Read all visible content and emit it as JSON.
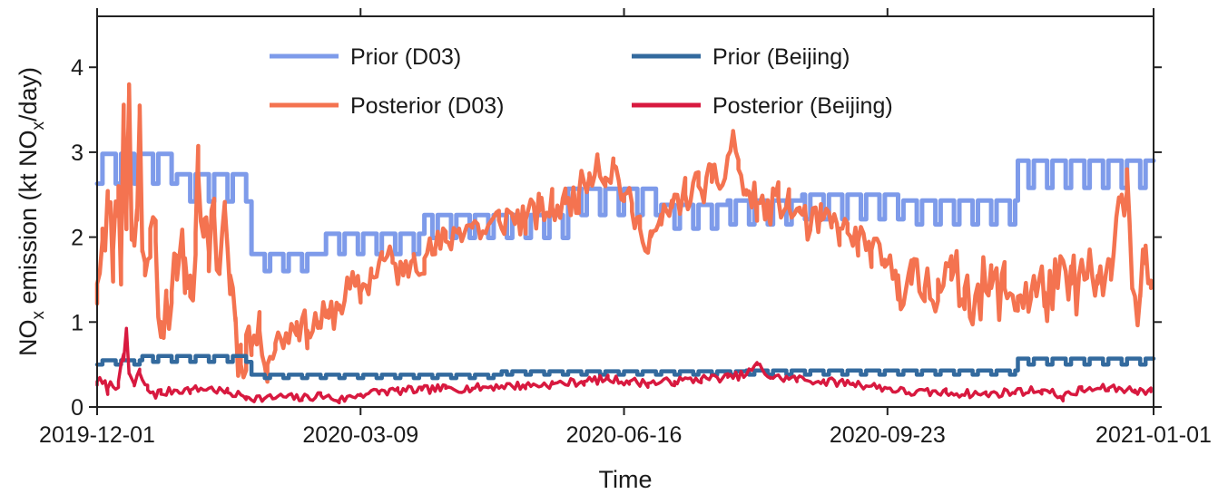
{
  "chart_data": {
    "type": "line",
    "xlabel": "Time",
    "ylabel_parts": {
      "pre": "NO",
      "sub": "x",
      "mid": " emission  (kt NO",
      "sub2": "x",
      "post": "/day)"
    },
    "xlim": [
      "2019-12-01",
      "2021-01-01"
    ],
    "ylim": [
      0,
      4.6
    ],
    "xticks": [
      "2019-12-01",
      "2020-03-09",
      "2020-06-16",
      "2020-09-23",
      "2021-01-01"
    ],
    "yticks": [
      0,
      1,
      2,
      3,
      4
    ],
    "grid": false,
    "legend_position": "top-center",
    "series": [
      {
        "name": "Prior (D03)",
        "color": "#7e9bea",
        "pattern": "weekly",
        "segments": [
          {
            "start": "2019-12-01",
            "end": "2019-12-31",
            "high": 2.98,
            "low": 2.63
          },
          {
            "start": "2019-12-31",
            "end": "2020-01-28",
            "high": 2.74,
            "low": 2.42
          },
          {
            "start": "2020-01-28",
            "end": "2020-02-23",
            "high": 1.8,
            "low": 1.6
          },
          {
            "start": "2020-02-23",
            "end": "2020-04-02",
            "high": 2.04,
            "low": 1.8
          },
          {
            "start": "2020-04-02",
            "end": "2020-05-26",
            "high": 2.26,
            "low": 1.99
          },
          {
            "start": "2020-05-26",
            "end": "2020-06-30",
            "high": 2.57,
            "low": 2.26
          },
          {
            "start": "2020-06-30",
            "end": "2020-07-25",
            "high": 2.38,
            "low": 2.1
          },
          {
            "start": "2020-07-25",
            "end": "2020-08-22",
            "high": 2.43,
            "low": 2.15
          },
          {
            "start": "2020-08-22",
            "end": "2020-09-29",
            "high": 2.5,
            "low": 2.21
          },
          {
            "start": "2020-09-29",
            "end": "2020-11-11",
            "high": 2.43,
            "low": 2.15
          },
          {
            "start": "2020-11-11",
            "end": "2021-01-01",
            "high": 2.9,
            "low": 2.58
          }
        ]
      },
      {
        "name": "Prior (Beijing)",
        "color": "#336a9e",
        "pattern": "weekly",
        "segments": [
          {
            "start": "2019-12-01",
            "end": "2019-12-18",
            "high": 0.55,
            "low": 0.5
          },
          {
            "start": "2019-12-18",
            "end": "2020-01-28",
            "high": 0.6,
            "low": 0.53
          },
          {
            "start": "2020-01-28",
            "end": "2020-03-09",
            "high": 0.38,
            "low": 0.34
          },
          {
            "start": "2020-03-09",
            "end": "2020-05-01",
            "high": 0.38,
            "low": 0.34
          },
          {
            "start": "2020-05-01",
            "end": "2020-08-01",
            "high": 0.42,
            "low": 0.38
          },
          {
            "start": "2020-08-01",
            "end": "2020-11-11",
            "high": 0.43,
            "low": 0.38
          },
          {
            "start": "2020-11-11",
            "end": "2021-01-01",
            "high": 0.57,
            "low": 0.5
          }
        ]
      },
      {
        "name": "Posterior (D03)",
        "color": "#f47350",
        "noise_seed": 11,
        "points": [
          [
            "2019-12-01",
            1.45
          ],
          [
            "2019-12-03",
            2.1
          ],
          [
            "2019-12-05",
            2.35
          ],
          [
            "2019-12-07",
            1.85
          ],
          [
            "2019-12-09",
            2.6
          ],
          [
            "2019-12-10",
            1.7
          ],
          [
            "2019-12-11",
            3.3
          ],
          [
            "2019-12-12",
            2.3
          ],
          [
            "2019-12-13",
            3.8
          ],
          [
            "2019-12-14",
            2.1
          ],
          [
            "2019-12-15",
            1.9
          ],
          [
            "2019-12-16",
            2.2
          ],
          [
            "2019-12-17",
            3.55
          ],
          [
            "2019-12-18",
            1.85
          ],
          [
            "2019-12-19",
            1.55
          ],
          [
            "2019-12-21",
            2.1
          ],
          [
            "2019-12-23",
            1.95
          ],
          [
            "2019-12-25",
            1.0
          ],
          [
            "2019-12-27",
            1.3
          ],
          [
            "2019-12-29",
            1.35
          ],
          [
            "2019-12-31",
            1.5
          ],
          [
            "2020-01-03",
            1.75
          ],
          [
            "2020-01-05",
            1.3
          ],
          [
            "2020-01-07",
            2.05
          ],
          [
            "2020-01-08",
            2.75
          ],
          [
            "2020-01-10",
            2.2
          ],
          [
            "2020-01-12",
            1.6
          ],
          [
            "2020-01-14",
            2.25
          ],
          [
            "2020-01-16",
            1.6
          ],
          [
            "2020-01-18",
            2.35
          ],
          [
            "2020-01-20",
            1.55
          ],
          [
            "2020-01-22",
            1.05
          ],
          [
            "2020-01-24",
            0.5
          ],
          [
            "2020-01-26",
            0.85
          ],
          [
            "2020-01-28",
            0.7
          ],
          [
            "2020-01-31",
            0.9
          ],
          [
            "2020-02-03",
            0.5
          ],
          [
            "2020-02-06",
            0.75
          ],
          [
            "2020-02-10",
            0.85
          ],
          [
            "2020-02-14",
            1.0
          ],
          [
            "2020-02-18",
            0.9
          ],
          [
            "2020-02-22",
            1.0
          ],
          [
            "2020-02-26",
            1.05
          ],
          [
            "2020-03-01",
            1.2
          ],
          [
            "2020-03-05",
            1.4
          ],
          [
            "2020-03-09",
            1.35
          ],
          [
            "2020-03-13",
            1.55
          ],
          [
            "2020-03-17",
            1.75
          ],
          [
            "2020-03-21",
            1.7
          ],
          [
            "2020-03-25",
            1.55
          ],
          [
            "2020-03-29",
            1.8
          ],
          [
            "2020-04-02",
            1.75
          ],
          [
            "2020-04-06",
            1.85
          ],
          [
            "2020-04-10",
            1.95
          ],
          [
            "2020-04-15",
            2.1
          ],
          [
            "2020-04-20",
            2.15
          ],
          [
            "2020-04-25",
            2.05
          ],
          [
            "2020-04-30",
            2.2
          ],
          [
            "2020-05-05",
            2.25
          ],
          [
            "2020-05-10",
            2.2
          ],
          [
            "2020-05-15",
            2.3
          ],
          [
            "2020-05-20",
            2.35
          ],
          [
            "2020-05-25",
            2.4
          ],
          [
            "2020-05-30",
            2.5
          ],
          [
            "2020-06-03",
            2.75
          ],
          [
            "2020-06-06",
            2.95
          ],
          [
            "2020-06-09",
            2.7
          ],
          [
            "2020-06-12",
            2.85
          ],
          [
            "2020-06-16",
            2.5
          ],
          [
            "2020-06-19",
            2.3
          ],
          [
            "2020-06-22",
            2.1
          ],
          [
            "2020-06-26",
            2.0
          ],
          [
            "2020-06-30",
            2.15
          ],
          [
            "2020-07-04",
            2.35
          ],
          [
            "2020-07-09",
            2.5
          ],
          [
            "2020-07-14",
            2.6
          ],
          [
            "2020-07-19",
            2.65
          ],
          [
            "2020-07-24",
            2.7
          ],
          [
            "2020-07-27",
            3.25
          ],
          [
            "2020-07-29",
            2.8
          ],
          [
            "2020-08-01",
            2.5
          ],
          [
            "2020-08-05",
            2.4
          ],
          [
            "2020-08-09",
            2.3
          ],
          [
            "2020-08-13",
            2.45
          ],
          [
            "2020-08-17",
            2.35
          ],
          [
            "2020-08-21",
            2.3
          ],
          [
            "2020-08-25",
            2.1
          ],
          [
            "2020-08-29",
            2.2
          ],
          [
            "2020-09-02",
            2.15
          ],
          [
            "2020-09-05",
            2.1
          ],
          [
            "2020-09-08",
            2.05
          ],
          [
            "2020-09-12",
            1.95
          ],
          [
            "2020-09-17",
            1.85
          ],
          [
            "2020-09-22",
            1.65
          ],
          [
            "2020-09-27",
            1.55
          ],
          [
            "2020-10-02",
            1.45
          ],
          [
            "2020-10-07",
            1.4
          ],
          [
            "2020-10-12",
            1.5
          ],
          [
            "2020-10-17",
            1.5
          ],
          [
            "2020-10-22",
            1.4
          ],
          [
            "2020-10-27",
            1.35
          ],
          [
            "2020-11-01",
            1.4
          ],
          [
            "2020-11-06",
            1.4
          ],
          [
            "2020-11-11",
            1.3
          ],
          [
            "2020-11-16",
            1.35
          ],
          [
            "2020-11-21",
            1.35
          ],
          [
            "2020-11-26",
            1.4
          ],
          [
            "2020-12-01",
            1.45
          ],
          [
            "2020-12-06",
            1.5
          ],
          [
            "2020-12-11",
            1.45
          ],
          [
            "2020-12-16",
            1.5
          ],
          [
            "2020-12-20",
            2.5
          ],
          [
            "2020-12-22",
            2.8
          ],
          [
            "2020-12-24",
            1.4
          ],
          [
            "2020-12-27",
            1.3
          ],
          [
            "2020-12-29",
            1.9
          ],
          [
            "2020-12-31",
            1.4
          ]
        ]
      },
      {
        "name": "Posterior (Beijing)",
        "color": "#d8193f",
        "noise_seed": 7,
        "points": [
          [
            "2019-12-01",
            0.3
          ],
          [
            "2019-12-05",
            0.22
          ],
          [
            "2019-12-09",
            0.3
          ],
          [
            "2019-12-11",
            0.55
          ],
          [
            "2019-12-12",
            0.92
          ],
          [
            "2019-12-13",
            0.4
          ],
          [
            "2019-12-15",
            0.25
          ],
          [
            "2019-12-17",
            0.4
          ],
          [
            "2019-12-20",
            0.2
          ],
          [
            "2019-12-25",
            0.15
          ],
          [
            "2019-12-30",
            0.2
          ],
          [
            "2020-01-05",
            0.2
          ],
          [
            "2020-01-12",
            0.22
          ],
          [
            "2020-01-19",
            0.17
          ],
          [
            "2020-01-26",
            0.12
          ],
          [
            "2020-02-02",
            0.1
          ],
          [
            "2020-02-09",
            0.12
          ],
          [
            "2020-02-16",
            0.1
          ],
          [
            "2020-02-23",
            0.14
          ],
          [
            "2020-03-01",
            0.08
          ],
          [
            "2020-03-09",
            0.15
          ],
          [
            "2020-03-16",
            0.18
          ],
          [
            "2020-03-23",
            0.19
          ],
          [
            "2020-04-01",
            0.2
          ],
          [
            "2020-04-10",
            0.22
          ],
          [
            "2020-04-20",
            0.22
          ],
          [
            "2020-05-01",
            0.25
          ],
          [
            "2020-05-10",
            0.25
          ],
          [
            "2020-05-20",
            0.27
          ],
          [
            "2020-06-01",
            0.3
          ],
          [
            "2020-06-10",
            0.33
          ],
          [
            "2020-06-18",
            0.3
          ],
          [
            "2020-06-25",
            0.28
          ],
          [
            "2020-07-05",
            0.3
          ],
          [
            "2020-07-15",
            0.33
          ],
          [
            "2020-07-25",
            0.35
          ],
          [
            "2020-08-01",
            0.38
          ],
          [
            "2020-08-05",
            0.5
          ],
          [
            "2020-08-10",
            0.35
          ],
          [
            "2020-08-20",
            0.33
          ],
          [
            "2020-08-30",
            0.3
          ],
          [
            "2020-09-10",
            0.28
          ],
          [
            "2020-09-23",
            0.22
          ],
          [
            "2020-10-01",
            0.17
          ],
          [
            "2020-10-15",
            0.17
          ],
          [
            "2020-10-30",
            0.15
          ],
          [
            "2020-11-10",
            0.18
          ],
          [
            "2020-11-20",
            0.2
          ],
          [
            "2020-11-28",
            0.12
          ],
          [
            "2020-12-05",
            0.2
          ],
          [
            "2020-12-15",
            0.22
          ],
          [
            "2020-12-25",
            0.2
          ],
          [
            "2020-12-31",
            0.18
          ]
        ]
      }
    ]
  }
}
